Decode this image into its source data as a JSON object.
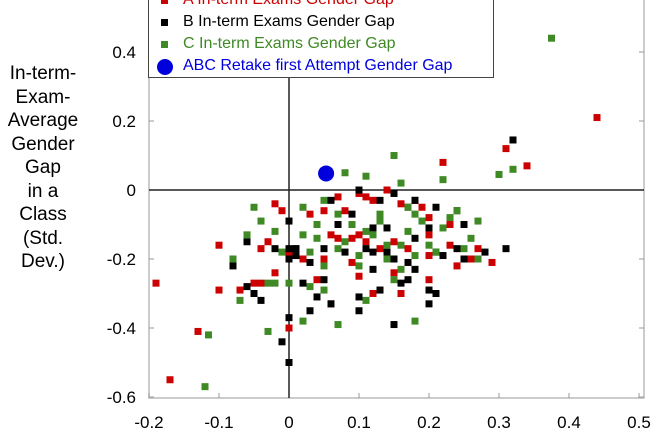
{
  "chart_data": {
    "type": "scatter",
    "ylabel_lines": [
      "In-term-",
      "Exam-",
      "Average",
      "Gender",
      "Gap",
      "in a",
      "Class",
      "(Std.",
      "Dev.)"
    ],
    "xlabel": "",
    "xlim": [
      -0.2,
      0.51
    ],
    "ylim": [
      -0.6,
      0.55
    ],
    "xticks": [
      "-0.2",
      "-0.1",
      "0",
      "0.1",
      "0.2",
      "0.3",
      "0.4",
      "0.5"
    ],
    "yticks": [
      "0.4",
      "0.2",
      "0",
      "-0.2",
      "-0.4",
      "-0.6"
    ],
    "reference_lines": {
      "x": 0,
      "y": 0
    },
    "legend_position": "top-left",
    "series": [
      {
        "name": "A In-term Exams Gender Gap",
        "color": "#cc0000",
        "marker": "square",
        "points": [
          [
            0.44,
            0.21
          ],
          [
            0.34,
            0.07
          ],
          [
            0.31,
            0.12
          ],
          [
            0.22,
            0.08
          ],
          [
            -0.19,
            -0.27
          ],
          [
            -0.17,
            -0.55
          ],
          [
            -0.13,
            -0.41
          ],
          [
            -0.1,
            -0.16
          ],
          [
            -0.1,
            -0.29
          ],
          [
            -0.07,
            -0.29
          ],
          [
            0.26,
            -0.2
          ],
          [
            0.29,
            -0.21
          ],
          [
            0.24,
            -0.22
          ],
          [
            0.23,
            -0.16
          ],
          [
            0.27,
            -0.17
          ],
          [
            0.16,
            -0.04
          ],
          [
            0.17,
            -0.05
          ],
          [
            0.19,
            -0.05
          ],
          [
            0.14,
            -0.0
          ],
          [
            0.1,
            -0.01
          ],
          [
            0.11,
            -0.02
          ],
          [
            0.12,
            -0.03
          ],
          [
            0.02,
            -0.2
          ],
          [
            0.01,
            -0.17
          ],
          [
            -0.0,
            -0.18
          ],
          [
            0.05,
            -0.06
          ],
          [
            0.04,
            -0.1
          ],
          [
            0.06,
            -0.13
          ],
          [
            0.07,
            -0.14
          ],
          [
            0.09,
            -0.14
          ],
          [
            0.13,
            -0.17
          ],
          [
            0.15,
            -0.15
          ],
          [
            0.18,
            -0.03
          ],
          [
            0.2,
            -0.08
          ],
          [
            0.2,
            -0.13
          ],
          [
            0.2,
            -0.19
          ],
          [
            0.15,
            -0.24
          ],
          [
            0.1,
            -0.25
          ],
          [
            0.05,
            -0.2
          ],
          [
            -0.02,
            -0.24
          ],
          [
            -0.04,
            -0.27
          ],
          [
            -0.05,
            -0.27
          ],
          [
            -0.04,
            -0.17
          ],
          [
            -0.03,
            -0.15
          ],
          [
            0.0,
            -0.4
          ],
          [
            0.06,
            -0.33
          ],
          [
            0.04,
            -0.26
          ],
          [
            0.09,
            -0.21
          ],
          [
            0.11,
            -0.15
          ],
          [
            0.17,
            -0.17
          ],
          [
            0.08,
            -0.06
          ],
          [
            0.03,
            -0.07
          ],
          [
            -0.02,
            -0.04
          ],
          [
            -0.01,
            -0.06
          ],
          [
            0.12,
            -0.3
          ],
          [
            0.2,
            -0.26
          ],
          [
            0.23,
            -0.1
          ],
          [
            0.16,
            -0.3
          ],
          [
            0.1,
            -0.13
          ],
          [
            0.07,
            -0.02
          ]
        ]
      },
      {
        "name": "B In-term Exams Gender Gap",
        "color": "#000000",
        "marker": "square",
        "points": [
          [
            0.32,
            0.145
          ],
          [
            0.31,
            -0.17
          ],
          [
            0.24,
            -0.17
          ],
          [
            0.25,
            -0.2
          ],
          [
            0.28,
            -0.18
          ],
          [
            0.0,
            -0.5
          ],
          [
            -0.01,
            -0.44
          ],
          [
            0.0,
            -0.37
          ],
          [
            0.1,
            0.0
          ],
          [
            0.06,
            -0.03
          ],
          [
            0.15,
            -0.01
          ],
          [
            0.13,
            -0.03
          ],
          [
            -0.06,
            -0.28
          ],
          [
            -0.08,
            -0.22
          ],
          [
            -0.05,
            -0.3
          ],
          [
            -0.04,
            -0.32
          ],
          [
            0.0,
            -0.09
          ],
          [
            0.0,
            -0.17
          ],
          [
            0.0,
            -0.2
          ],
          [
            0.01,
            -0.19
          ],
          [
            0.01,
            -0.17
          ],
          [
            0.03,
            -0.21
          ],
          [
            0.05,
            -0.26
          ],
          [
            0.06,
            -0.33
          ],
          [
            0.1,
            -0.31
          ],
          [
            0.1,
            -0.35
          ],
          [
            0.12,
            -0.23
          ],
          [
            0.12,
            -0.18
          ],
          [
            0.14,
            -0.11
          ],
          [
            0.15,
            -0.2
          ],
          [
            0.17,
            -0.21
          ],
          [
            0.18,
            -0.14
          ],
          [
            0.18,
            -0.23
          ],
          [
            0.2,
            -0.11
          ],
          [
            0.21,
            -0.18
          ],
          [
            0.22,
            -0.19
          ],
          [
            0.21,
            -0.3
          ],
          [
            0.2,
            -0.29
          ],
          [
            0.16,
            -0.27
          ],
          [
            0.17,
            -0.26
          ],
          [
            0.13,
            -0.29
          ],
          [
            0.11,
            -0.17
          ],
          [
            0.14,
            -0.18
          ],
          [
            0.08,
            -0.18
          ],
          [
            0.07,
            -0.1
          ],
          [
            0.13,
            -0.08
          ],
          [
            0.18,
            -0.03
          ],
          [
            0.21,
            -0.05
          ],
          [
            0.24,
            -0.06
          ],
          [
            0.25,
            -0.1
          ],
          [
            0.2,
            -0.33
          ],
          [
            0.15,
            -0.39
          ],
          [
            0.04,
            -0.31
          ],
          [
            0.03,
            -0.35
          ],
          [
            -0.06,
            -0.15
          ],
          [
            0.09,
            -0.07
          ],
          [
            0.12,
            -0.11
          ],
          [
            0.05,
            -0.17
          ],
          [
            -0.02,
            -0.17
          ],
          [
            0.02,
            -0.27
          ]
        ]
      },
      {
        "name": "C In-term Exams Gender Gap",
        "color": "#3f8a25",
        "marker": "square",
        "points": [
          [
            0.375,
            0.44
          ],
          [
            0.3,
            0.045
          ],
          [
            0.32,
            0.06
          ],
          [
            0.27,
            -0.09
          ],
          [
            0.15,
            0.1
          ],
          [
            0.16,
            0.02
          ],
          [
            0.11,
            0.04
          ],
          [
            0.08,
            0.05
          ],
          [
            0.22,
            0.03
          ],
          [
            -0.12,
            -0.57
          ],
          [
            -0.115,
            -0.42
          ],
          [
            -0.08,
            -0.2
          ],
          [
            -0.07,
            -0.32
          ],
          [
            -0.05,
            -0.05
          ],
          [
            -0.04,
            -0.09
          ],
          [
            -0.03,
            -0.41
          ],
          [
            0.18,
            -0.38
          ],
          [
            0.07,
            -0.39
          ],
          [
            0.16,
            -0.23
          ],
          [
            0.02,
            -0.38
          ],
          [
            -0.03,
            -0.27
          ],
          [
            -0.02,
            -0.27
          ],
          [
            0.0,
            -0.27
          ],
          [
            0.03,
            -0.28
          ],
          [
            0.05,
            -0.29
          ],
          [
            0.11,
            -0.32
          ],
          [
            0.14,
            -0.2
          ],
          [
            0.18,
            -0.19
          ],
          [
            0.2,
            -0.16
          ],
          [
            0.21,
            -0.18
          ],
          [
            0.22,
            -0.11
          ],
          [
            0.19,
            -0.09
          ],
          [
            0.17,
            -0.05
          ],
          [
            0.24,
            -0.06
          ],
          [
            0.26,
            -0.14
          ],
          [
            0.27,
            -0.2
          ],
          [
            0.25,
            -0.17
          ],
          [
            0.15,
            -0.26
          ],
          [
            0.1,
            -0.19
          ],
          [
            0.1,
            -0.22
          ],
          [
            0.05,
            -0.22
          ],
          [
            0.03,
            -0.18
          ],
          [
            0.04,
            -0.1
          ],
          [
            0.02,
            -0.13
          ],
          [
            0.05,
            -0.03
          ],
          [
            0.07,
            -0.07
          ],
          [
            0.09,
            -0.1
          ],
          [
            0.11,
            -0.12
          ],
          [
            0.12,
            -0.13
          ],
          [
            0.13,
            -0.09
          ],
          [
            0.14,
            -0.16
          ],
          [
            0.16,
            -0.16
          ],
          [
            0.17,
            -0.12
          ],
          [
            0.07,
            -0.17
          ],
          [
            0.08,
            -0.15
          ],
          [
            0.04,
            -0.14
          ],
          [
            -0.01,
            -0.18
          ],
          [
            -0.06,
            -0.13
          ],
          [
            -0.02,
            -0.12
          ],
          [
            0.02,
            -0.05
          ],
          [
            0.13,
            -0.07
          ],
          [
            0.18,
            -0.07
          ],
          [
            0.23,
            -0.08
          ]
        ]
      },
      {
        "name": "ABC Retake first Attempt Gender Gap",
        "color": "#0000dd",
        "marker": "circle",
        "points": [
          [
            0.053,
            0.048
          ]
        ]
      }
    ]
  }
}
